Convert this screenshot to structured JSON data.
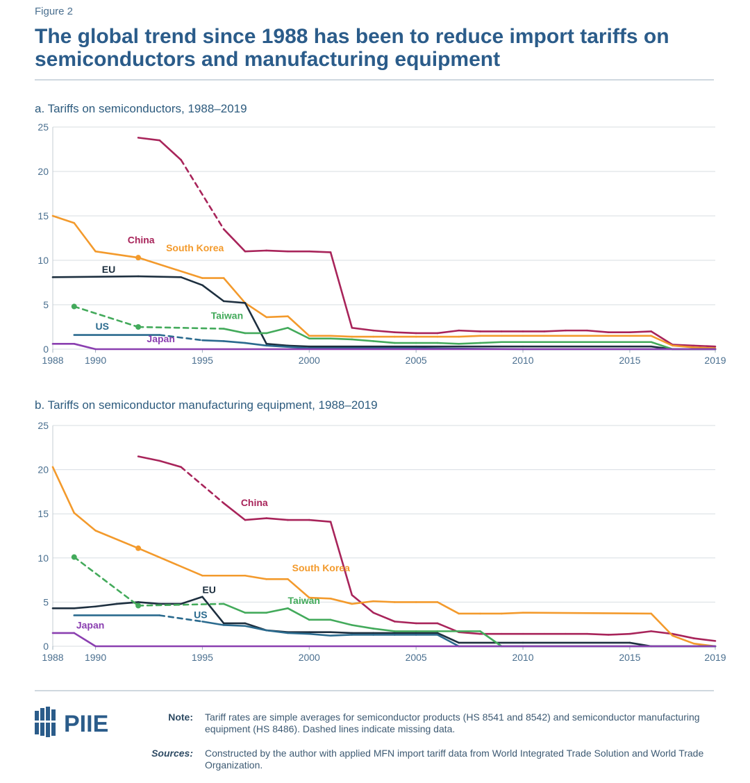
{
  "figure_label": "Figure 2",
  "title": "The global trend since 1988 has been to reduce import tariffs on semiconductors and manufacturing equipment",
  "footer": {
    "logo_text": "PIIE",
    "note_label": "Note:",
    "note_text": "Tariff rates are simple averages for semiconductor products (HS 8541 and 8542) and semiconductor manufacturing equipment (HS 8486). Dashed lines indicate missing data.",
    "sources_label": "Sources:",
    "sources_text": "Constructed by the author with applied MFN import tariff data from World Integrated Trade Solution and World Trade Organization."
  },
  "colors": {
    "China": "#a8245a",
    "South Korea": "#f39a2c",
    "EU": "#1d2f3f",
    "Taiwan": "#43aa5b",
    "US": "#2a6a8e",
    "Japan": "#8a3fb0"
  },
  "chart_data": [
    {
      "type": "line",
      "title": "a. Tariffs on semiconductors, 1988–2019",
      "xlim": [
        1988,
        2019
      ],
      "ylim": [
        0,
        25
      ],
      "yticks": [
        0,
        5,
        10,
        15,
        20,
        25
      ],
      "xticks": [
        1988,
        1990,
        1995,
        2000,
        2005,
        2010,
        2015,
        2019
      ],
      "grid": true,
      "series": [
        {
          "name": "China",
          "points": [
            [
              1992,
              23.8
            ],
            [
              1993,
              23.5
            ],
            [
              1994,
              21.3
            ],
            [
              1996,
              13.5
            ],
            [
              1997,
              11.0
            ],
            [
              1998,
              11.1
            ],
            [
              1999,
              11.0
            ],
            [
              2000,
              11.0
            ],
            [
              2001,
              10.9
            ],
            [
              2002,
              2.4
            ],
            [
              2003,
              2.1
            ],
            [
              2004,
              1.9
            ],
            [
              2005,
              1.8
            ],
            [
              2006,
              1.8
            ],
            [
              2007,
              2.1
            ],
            [
              2008,
              2.0
            ],
            [
              2009,
              2.0
            ],
            [
              2010,
              2.0
            ],
            [
              2011,
              2.0
            ],
            [
              2012,
              2.1
            ],
            [
              2013,
              2.1
            ],
            [
              2014,
              1.9
            ],
            [
              2015,
              1.9
            ],
            [
              2016,
              2.0
            ],
            [
              2017,
              0.5
            ],
            [
              2018,
              0.4
            ],
            [
              2019,
              0.3
            ]
          ],
          "dashed_segments": [
            [
              1994,
              1996
            ]
          ],
          "label_x": 1991.5,
          "label_y": 11.9
        },
        {
          "name": "South Korea",
          "points": [
            [
              1988,
              15.0
            ],
            [
              1989,
              14.2
            ],
            [
              1990,
              11.0
            ],
            [
              1992,
              10.3
            ],
            [
              1995,
              8.0
            ],
            [
              1996,
              8.0
            ],
            [
              1997,
              5.2
            ],
            [
              1998,
              3.6
            ],
            [
              1999,
              3.7
            ],
            [
              2000,
              1.5
            ],
            [
              2001,
              1.5
            ],
            [
              2002,
              1.4
            ],
            [
              2003,
              1.4
            ],
            [
              2004,
              1.4
            ],
            [
              2005,
              1.4
            ],
            [
              2006,
              1.4
            ],
            [
              2007,
              1.4
            ],
            [
              2008,
              1.5
            ],
            [
              2009,
              1.5
            ],
            [
              2010,
              1.5
            ],
            [
              2011,
              1.5
            ],
            [
              2012,
              1.5
            ],
            [
              2013,
              1.5
            ],
            [
              2014,
              1.5
            ],
            [
              2015,
              1.5
            ],
            [
              2016,
              1.5
            ],
            [
              2017,
              0.4
            ],
            [
              2018,
              0.2
            ],
            [
              2019,
              0.1
            ]
          ],
          "dashed_segments": [
            [
              1990,
              1995
            ]
          ],
          "label_x": 1993.3,
          "label_y": 11.0
        },
        {
          "name": "EU",
          "points": [
            [
              1988,
              8.1
            ],
            [
              1992,
              8.2
            ],
            [
              1994,
              8.1
            ],
            [
              1995,
              7.2
            ],
            [
              1996,
              5.4
            ],
            [
              1997,
              5.2
            ],
            [
              1998,
              0.6
            ],
            [
              1999,
              0.4
            ],
            [
              2000,
              0.3
            ],
            [
              2005,
              0.3
            ],
            [
              2010,
              0.3
            ],
            [
              2015,
              0.3
            ],
            [
              2016,
              0.3
            ],
            [
              2017,
              0.0
            ],
            [
              2019,
              0.0
            ]
          ],
          "dashed_segments": [],
          "label_x": 1990.3,
          "label_y": 8.6
        },
        {
          "name": "Taiwan",
          "points": [
            [
              1989,
              4.8
            ],
            [
              1992,
              2.5
            ],
            [
              1996,
              2.3
            ],
            [
              1997,
              1.8
            ],
            [
              1998,
              1.8
            ],
            [
              1999,
              2.4
            ],
            [
              2000,
              1.2
            ],
            [
              2001,
              1.2
            ],
            [
              2002,
              1.1
            ],
            [
              2003,
              0.9
            ],
            [
              2004,
              0.7
            ],
            [
              2005,
              0.7
            ],
            [
              2006,
              0.7
            ],
            [
              2007,
              0.6
            ],
            [
              2008,
              0.7
            ],
            [
              2009,
              0.8
            ],
            [
              2010,
              0.8
            ],
            [
              2016,
              0.8
            ],
            [
              2017,
              0.0
            ],
            [
              2019,
              0.0
            ]
          ],
          "dashed_segments": [
            [
              1989,
              1992
            ],
            [
              1992,
              1996
            ]
          ],
          "label_x": 1995.4,
          "label_y": 3.4
        },
        {
          "name": "US",
          "points": [
            [
              1989,
              1.6
            ],
            [
              1993,
              1.6
            ],
            [
              1995,
              1.0
            ],
            [
              1996,
              0.9
            ],
            [
              1997,
              0.7
            ],
            [
              1998,
              0.4
            ],
            [
              2000,
              0.1
            ],
            [
              2005,
              0.1
            ],
            [
              2010,
              0.0
            ],
            [
              2019,
              0.0
            ]
          ],
          "dashed_segments": [
            [
              1993,
              1995
            ]
          ],
          "label_x": 1990.0,
          "label_y": 2.2
        },
        {
          "name": "Japan",
          "points": [
            [
              1988,
              0.6
            ],
            [
              1989,
              0.6
            ],
            [
              1990,
              0.0
            ],
            [
              2019,
              0.0
            ]
          ],
          "dashed_segments": [],
          "label_x": 1992.4,
          "label_y": 0.8
        }
      ]
    },
    {
      "type": "line",
      "title": "b. Tariffs on semiconductor manufacturing equipment, 1988–2019",
      "xlim": [
        1988,
        2019
      ],
      "ylim": [
        0,
        25
      ],
      "yticks": [
        0,
        5,
        10,
        15,
        20,
        25
      ],
      "xticks": [
        1988,
        1990,
        1995,
        2000,
        2005,
        2010,
        2015,
        2019
      ],
      "grid": true,
      "series": [
        {
          "name": "China",
          "points": [
            [
              1992,
              21.5
            ],
            [
              1993,
              21.0
            ],
            [
              1994,
              20.3
            ],
            [
              1996,
              16.2
            ],
            [
              1997,
              14.3
            ],
            [
              1998,
              14.5
            ],
            [
              1999,
              14.3
            ],
            [
              2000,
              14.3
            ],
            [
              2001,
              14.1
            ],
            [
              2002,
              5.8
            ],
            [
              2003,
              3.8
            ],
            [
              2004,
              2.8
            ],
            [
              2005,
              2.6
            ],
            [
              2006,
              2.6
            ],
            [
              2007,
              1.6
            ],
            [
              2008,
              1.4
            ],
            [
              2009,
              1.4
            ],
            [
              2010,
              1.4
            ],
            [
              2011,
              1.4
            ],
            [
              2012,
              1.4
            ],
            [
              2013,
              1.4
            ],
            [
              2014,
              1.3
            ],
            [
              2015,
              1.4
            ],
            [
              2016,
              1.7
            ],
            [
              2017,
              1.4
            ],
            [
              2018,
              0.9
            ],
            [
              2019,
              0.6
            ]
          ],
          "dashed_segments": [
            [
              1994,
              1996
            ]
          ],
          "label_x": 1996.8,
          "label_y": 15.9
        },
        {
          "name": "South Korea",
          "points": [
            [
              1988,
              20.3
            ],
            [
              1989,
              15.1
            ],
            [
              1990,
              13.1
            ],
            [
              1992,
              11.1
            ],
            [
              1995,
              8.0
            ],
            [
              1996,
              8.0
            ],
            [
              1997,
              8.0
            ],
            [
              1998,
              7.6
            ],
            [
              1999,
              7.6
            ],
            [
              2000,
              5.5
            ],
            [
              2001,
              5.4
            ],
            [
              2002,
              4.8
            ],
            [
              2003,
              5.1
            ],
            [
              2004,
              5.0
            ],
            [
              2005,
              5.0
            ],
            [
              2006,
              5.0
            ],
            [
              2007,
              3.7
            ],
            [
              2008,
              3.7
            ],
            [
              2009,
              3.7
            ],
            [
              2010,
              3.8
            ],
            [
              2016,
              3.7
            ],
            [
              2017,
              1.2
            ],
            [
              2018,
              0.3
            ],
            [
              2019,
              0.0
            ]
          ],
          "dashed_segments": [
            [
              1990,
              1995
            ]
          ],
          "label_x": 1999.2,
          "label_y": 8.5
        },
        {
          "name": "EU",
          "points": [
            [
              1988,
              4.3
            ],
            [
              1989,
              4.3
            ],
            [
              1990,
              4.5
            ],
            [
              1991,
              4.8
            ],
            [
              1992,
              5.0
            ],
            [
              1993,
              4.8
            ],
            [
              1994,
              4.8
            ],
            [
              1995,
              5.6
            ],
            [
              1996,
              2.6
            ],
            [
              1997,
              2.6
            ],
            [
              1998,
              1.8
            ],
            [
              1999,
              1.6
            ],
            [
              2000,
              1.6
            ],
            [
              2001,
              1.6
            ],
            [
              2002,
              1.5
            ],
            [
              2003,
              1.5
            ],
            [
              2004,
              1.5
            ],
            [
              2005,
              1.5
            ],
            [
              2006,
              1.5
            ],
            [
              2007,
              0.4
            ],
            [
              2010,
              0.4
            ],
            [
              2015,
              0.4
            ],
            [
              2016,
              0.0
            ],
            [
              2019,
              0.0
            ]
          ],
          "dashed_segments": [],
          "label_x": 1995.0,
          "label_y": 6.0
        },
        {
          "name": "Taiwan",
          "points": [
            [
              1989,
              10.1
            ],
            [
              1992,
              4.6
            ],
            [
              1996,
              4.8
            ],
            [
              1997,
              3.8
            ],
            [
              1998,
              3.8
            ],
            [
              1999,
              4.3
            ],
            [
              2000,
              3.0
            ],
            [
              2001,
              3.0
            ],
            [
              2002,
              2.4
            ],
            [
              2003,
              2.0
            ],
            [
              2004,
              1.7
            ],
            [
              2005,
              1.7
            ],
            [
              2006,
              1.7
            ],
            [
              2007,
              1.7
            ],
            [
              2008,
              1.7
            ],
            [
              2009,
              0.0
            ],
            [
              2019,
              0.0
            ]
          ],
          "dashed_segments": [
            [
              1989,
              1992
            ],
            [
              1992,
              1996
            ]
          ],
          "label_x": 1999.0,
          "label_y": 4.8
        },
        {
          "name": "US",
          "points": [
            [
              1989,
              3.5
            ],
            [
              1993,
              3.5
            ],
            [
              1995,
              2.8
            ],
            [
              1996,
              2.4
            ],
            [
              1997,
              2.3
            ],
            [
              1998,
              1.8
            ],
            [
              1999,
              1.5
            ],
            [
              2000,
              1.4
            ],
            [
              2001,
              1.2
            ],
            [
              2002,
              1.3
            ],
            [
              2003,
              1.3
            ],
            [
              2004,
              1.3
            ],
            [
              2005,
              1.3
            ],
            [
              2006,
              1.3
            ],
            [
              2007,
              0.0
            ],
            [
              2019,
              0.0
            ]
          ],
          "dashed_segments": [
            [
              1993,
              1995
            ]
          ],
          "label_x": 1994.6,
          "label_y": 3.2
        },
        {
          "name": "Japan",
          "points": [
            [
              1988,
              1.5
            ],
            [
              1989,
              1.5
            ],
            [
              1990,
              0.0
            ],
            [
              2019,
              0.0
            ]
          ],
          "dashed_segments": [],
          "label_x": 1989.1,
          "label_y": 2.0
        }
      ]
    }
  ]
}
